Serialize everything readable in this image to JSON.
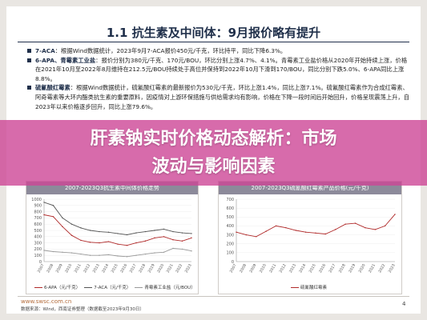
{
  "slide": {
    "title": "1.1 抗生素及中间体：9月报价略有提升",
    "bullets": [
      {
        "lead": "7-ACA",
        "text": "：根据Wind数据统计，2023年9月7-ACA报价450元/千克，环比持平，同比下降6.3%。"
      },
      {
        "lead": "6-APA、青霉素工业盐",
        "text": "：报价分别为380元/千克、170元/BOU，环比分别上涨4.7%、4.1%。青霉素工业盐价格从2020年开始持续上涨，价格在2021年10月至2022年8月维持在212.5元/BOU持续处于高位并保持到2022年10月下滑到170/BOU，同比分别下跌5.0%、6-APA同比上涨8.8%。"
      },
      {
        "lead": "硫氰酸红霉素",
        "text": "：根据Wind数据统计，硫氰酸红霉素的最新报价为530元/千克，环比上涨1.4%，同比上涨7.1%。硫氰酸红霉素作为合成红霉素、阿奇霉素等大环内酯类抗生素的重要原料，因疫情对上游环保措施与供给需求均有影响，价格在下降一段时间后开始回升，价格呈现震荡上升，自2023年以来价格逐步回升，同比上涨79.6%。"
      }
    ],
    "footer_url": "www.swsc.com.cn",
    "footer_source": "数据来源：Wind，西南证券整理（数据截至2023年9月30日）",
    "page_number": "4"
  },
  "banner": {
    "line1": "肝素钠实时价格动态解析：市场",
    "line2": "波动与影响因素"
  },
  "colors": {
    "title": "#1f2f4a",
    "banner": "#cd4696",
    "chart_header": "#8c8a9a",
    "series_red": "#b02a2a",
    "series_gray": "#555555"
  },
  "chart_data": [
    {
      "type": "line",
      "title": "2007-2023Q3抗生素中间体价格走势",
      "ylim": [
        0,
        1000
      ],
      "y_ticks": [
        "1000",
        "900",
        "800",
        "700",
        "600",
        "500",
        "400",
        "300",
        "200",
        "100",
        "0"
      ],
      "x_ticks": [
        "2007",
        "2008",
        "2009",
        "2010",
        "2011",
        "2012",
        "2013",
        "2014",
        "2015",
        "2016",
        "2017",
        "2018",
        "2019",
        "2020",
        "2021",
        "2022",
        "2023"
      ],
      "series": [
        {
          "name": "6-APA（元/千克）",
          "color": "#b02a2a",
          "values": [
            750,
            720,
            560,
            420,
            340,
            310,
            300,
            320,
            280,
            260,
            300,
            330,
            380,
            400,
            350,
            330,
            380
          ]
        },
        {
          "name": "7-ACA（元/千克）",
          "color": "#555555",
          "values": [
            950,
            900,
            700,
            600,
            540,
            500,
            480,
            470,
            450,
            430,
            460,
            480,
            500,
            520,
            480,
            460,
            450
          ]
        },
        {
          "name": "青霉素工业盐（元/BOU）",
          "color": "#999999",
          "values": [
            180,
            160,
            150,
            140,
            120,
            100,
            100,
            110,
            90,
            80,
            100,
            120,
            140,
            150,
            212,
            200,
            170
          ]
        }
      ]
    },
    {
      "type": "line",
      "title": "2007-2023Q3硫氰酸红霉素产品价格(元/千克)",
      "ylim": [
        0,
        700
      ],
      "y_ticks": [
        "700",
        "600",
        "500",
        "400",
        "300",
        "200",
        "100",
        "0"
      ],
      "x_ticks": [
        "2007",
        "2008",
        "2009",
        "2010",
        "2011",
        "2012",
        "2013",
        "2014",
        "2015",
        "2016",
        "2017",
        "2018",
        "2019",
        "2020",
        "2021",
        "2022",
        "2023"
      ],
      "series": [
        {
          "name": "硫氰酸红霉素",
          "color": "#b02a2a",
          "values": [
            330,
            300,
            280,
            340,
            400,
            380,
            350,
            330,
            320,
            310,
            360,
            420,
            430,
            380,
            360,
            400,
            530
          ]
        }
      ]
    }
  ]
}
